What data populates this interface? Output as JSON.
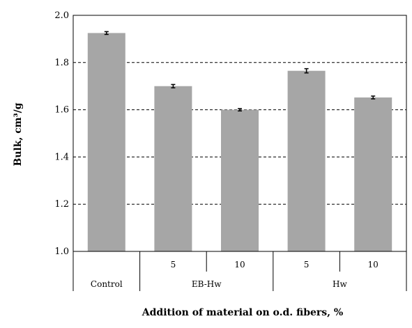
{
  "chart_data": {
    "type": "bar",
    "ylabel": "Bulk, cm³/g",
    "xlabel": "Addition of material on o.d. fibers, %",
    "ylim": [
      1.0,
      2.0
    ],
    "yticks": [
      "1.0",
      "1.2",
      "1.4",
      "1.6",
      "1.8",
      "2.0"
    ],
    "grid": "horizontal dashed",
    "bar_color": "#a6a6a6",
    "categories": [
      {
        "group": "Control",
        "level": "",
        "value": 1.925,
        "error": 0.003
      },
      {
        "group": "EB-Hw",
        "level": "5",
        "value": 1.7,
        "error": 0.004
      },
      {
        "group": "EB-Hw",
        "level": "10",
        "value": 1.6,
        "error": 0.002
      },
      {
        "group": "Hw",
        "level": "5",
        "value": 1.765,
        "error": 0.006
      },
      {
        "group": "Hw",
        "level": "10",
        "value": 1.652,
        "error": 0.003
      }
    ],
    "groups": [
      {
        "label": "Control",
        "span": [
          0,
          0
        ]
      },
      {
        "label": "EB-Hw",
        "span": [
          1,
          2
        ]
      },
      {
        "label": "Hw",
        "span": [
          3,
          4
        ]
      }
    ]
  }
}
